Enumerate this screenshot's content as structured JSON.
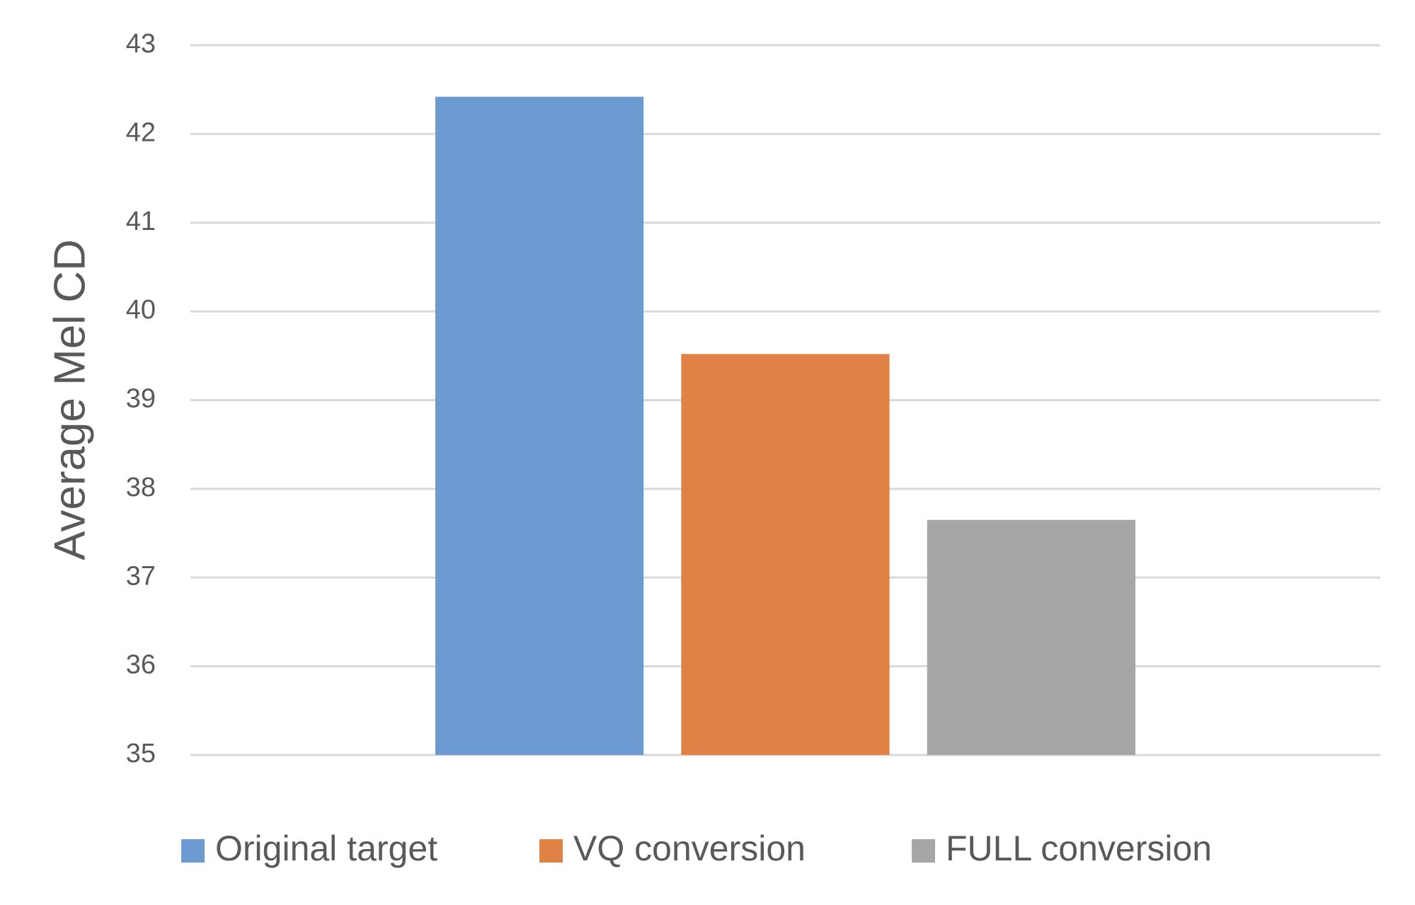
{
  "chart_data": {
    "type": "bar",
    "ylabel": "Average Mel CD",
    "series": [
      {
        "name": "Original target",
        "color": "#6b9bd1",
        "values": [
          42.42
        ]
      },
      {
        "name": "VQ conversion",
        "color": "#e08245",
        "values": [
          39.52
        ]
      },
      {
        "name": "FULL conversion",
        "color": "#a6a6a6",
        "values": [
          37.65
        ]
      }
    ],
    "ylim": [
      35,
      43
    ],
    "yticks": [
      35,
      36,
      37,
      38,
      39,
      40,
      41,
      42,
      43
    ],
    "grid": true,
    "legend": "bottom"
  }
}
